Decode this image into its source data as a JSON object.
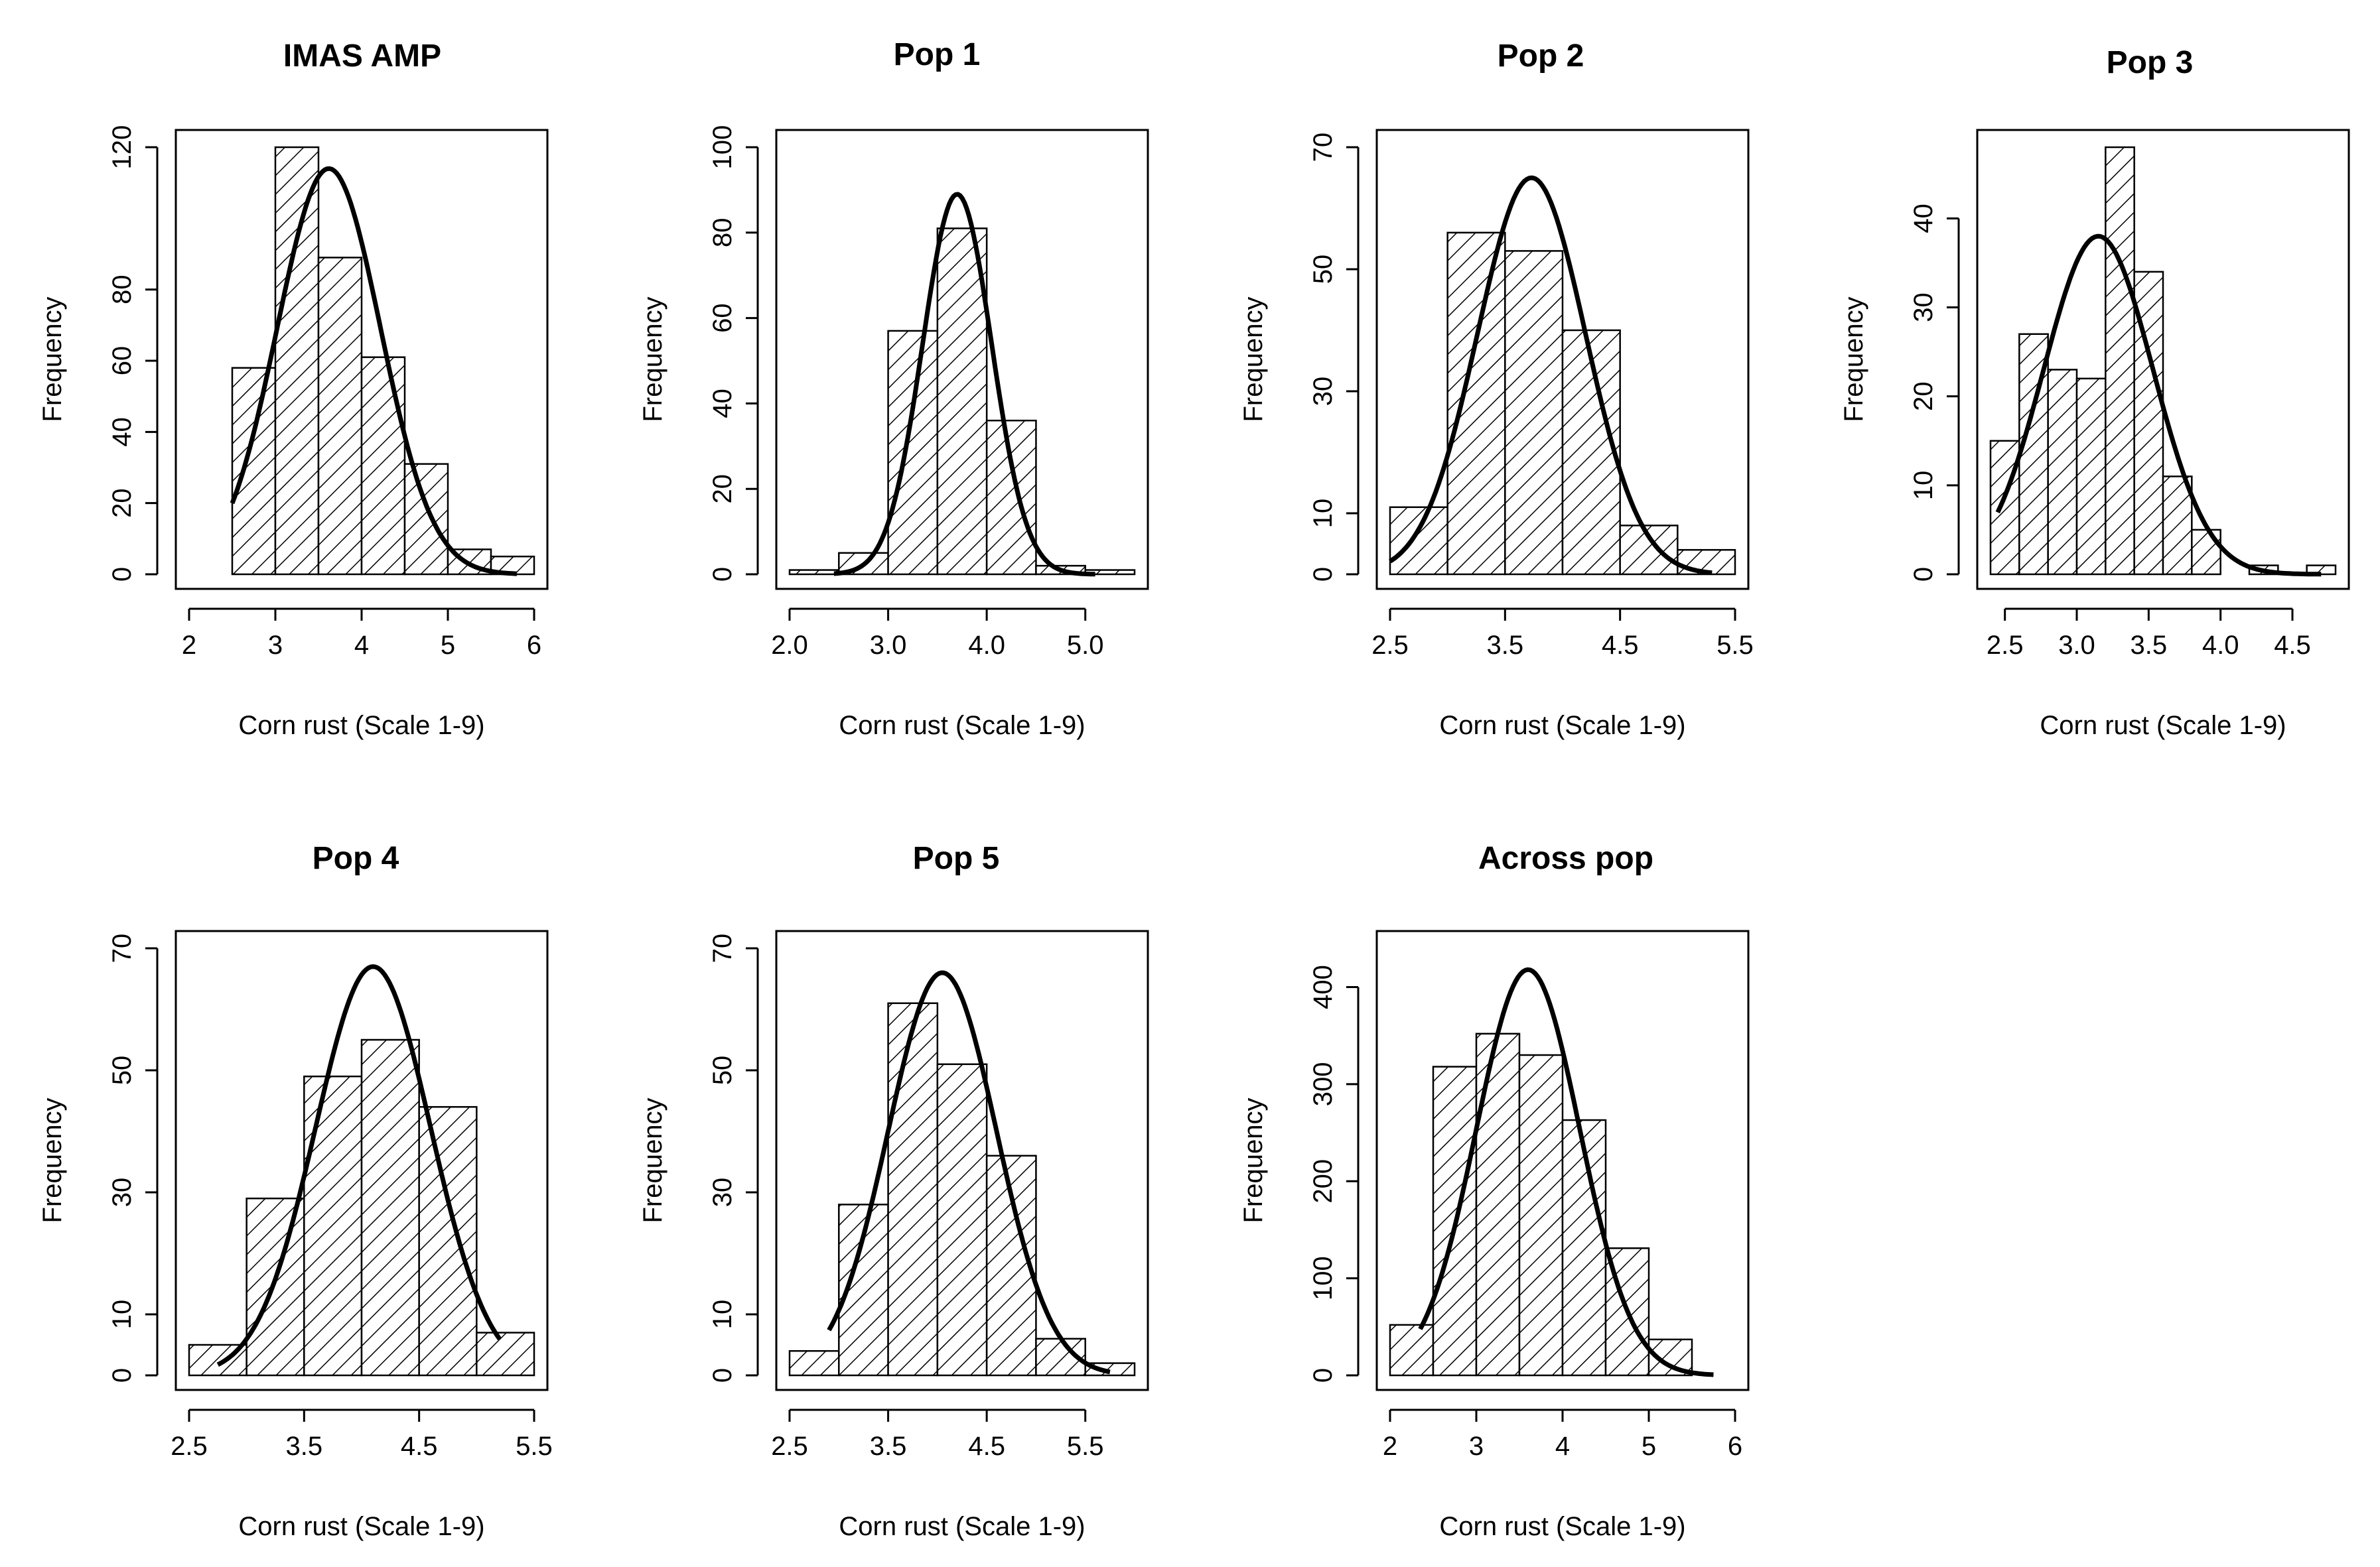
{
  "chart_data": [
    {
      "type": "bar",
      "title": "IMAS AMP",
      "xlabel": "Corn rust (Scale 1-9)",
      "ylabel": "Frequency",
      "bins": [
        [
          2.0,
          2.5
        ],
        [
          2.5,
          3.0
        ],
        [
          3.0,
          3.5
        ],
        [
          3.5,
          4.0
        ],
        [
          4.0,
          4.5
        ],
        [
          4.5,
          5.0
        ],
        [
          5.0,
          5.5
        ],
        [
          5.5,
          6.0
        ]
      ],
      "values": [
        0,
        58,
        120,
        89,
        61,
        31,
        7,
        5
      ],
      "curve": {
        "mean": 3.62,
        "peak": 114,
        "sd": 0.6,
        "from": 2.5,
        "to": 5.8
      },
      "xlim": [
        2.0,
        6.0
      ],
      "ylim": [
        0,
        120
      ],
      "xticks": [
        2,
        3,
        4,
        5,
        6
      ],
      "xtick_labels": [
        "2",
        "3",
        "4",
        "5",
        "6"
      ],
      "yticks": [
        0,
        20,
        40,
        60,
        80,
        120
      ],
      "ytick_labels": [
        "0",
        "20",
        "40",
        "60",
        "80",
        "120"
      ]
    },
    {
      "type": "bar",
      "title": "Pop 1",
      "xlabel": "Corn rust (Scale 1-9)",
      "ylabel": "Frequency",
      "bins": [
        [
          2.0,
          2.5
        ],
        [
          2.5,
          3.0
        ],
        [
          3.0,
          3.5
        ],
        [
          3.5,
          4.0
        ],
        [
          4.0,
          4.5
        ],
        [
          4.5,
          5.0
        ],
        [
          5.0,
          5.5
        ]
      ],
      "values": [
        1,
        5,
        57,
        81,
        36,
        2,
        1
      ],
      "curve": {
        "mean": 3.7,
        "peak": 89,
        "sd": 0.35,
        "from": 2.45,
        "to": 5.1
      },
      "xlim": [
        2.0,
        5.5
      ],
      "ylim": [
        0,
        100
      ],
      "xticks": [
        2.0,
        3.0,
        4.0,
        5.0
      ],
      "xtick_labels": [
        "2.0",
        "3.0",
        "4.0",
        "5.0"
      ],
      "yticks": [
        0,
        20,
        40,
        60,
        80,
        100
      ],
      "ytick_labels": [
        "0",
        "20",
        "40",
        "60",
        "80",
        "100"
      ]
    },
    {
      "type": "bar",
      "title": "Pop 2",
      "xlabel": "Corn rust (Scale 1-9)",
      "ylabel": "Frequency",
      "bins": [
        [
          2.5,
          3.0
        ],
        [
          3.0,
          3.5
        ],
        [
          3.5,
          4.0
        ],
        [
          4.0,
          4.5
        ],
        [
          4.5,
          5.0
        ],
        [
          5.0,
          5.5
        ]
      ],
      "values": [
        11,
        56,
        53,
        40,
        8,
        4
      ],
      "curve": {
        "mean": 3.73,
        "peak": 65,
        "sd": 0.47,
        "from": 2.5,
        "to": 5.3
      },
      "xlim": [
        2.5,
        5.5
      ],
      "ylim": [
        0,
        70
      ],
      "xticks": [
        2.5,
        3.5,
        4.5,
        5.5
      ],
      "xtick_labels": [
        "2.5",
        "3.5",
        "4.5",
        "5.5"
      ],
      "yticks": [
        0,
        10,
        30,
        50,
        70
      ],
      "ytick_labels": [
        "0",
        "10",
        "30",
        "50",
        "70"
      ]
    },
    {
      "type": "bar",
      "title": "Pop 3",
      "xlabel": "Corn rust (Scale 1-9)",
      "ylabel": "Frequency",
      "bins": [
        [
          2.4,
          2.6
        ],
        [
          2.6,
          2.8
        ],
        [
          2.8,
          3.0
        ],
        [
          3.0,
          3.2
        ],
        [
          3.2,
          3.4
        ],
        [
          3.4,
          3.6
        ],
        [
          3.6,
          3.8
        ],
        [
          3.8,
          4.0
        ],
        [
          4.0,
          4.2
        ],
        [
          4.2,
          4.4
        ],
        [
          4.4,
          4.6
        ],
        [
          4.6,
          4.8
        ]
      ],
      "values": [
        15,
        27,
        23,
        22,
        48,
        34,
        11,
        5,
        0,
        1,
        0,
        1
      ],
      "curve": {
        "mean": 3.15,
        "peak": 38,
        "sd": 0.38,
        "from": 2.45,
        "to": 4.7
      },
      "xlim": [
        2.4,
        4.8
      ],
      "ylim": [
        0,
        48
      ],
      "xticks": [
        2.5,
        3.0,
        3.5,
        4.0,
        4.5
      ],
      "xtick_labels": [
        "2.5",
        "3.0",
        "3.5",
        "4.0",
        "4.5"
      ],
      "yticks": [
        0,
        10,
        20,
        30,
        40
      ],
      "ytick_labels": [
        "0",
        "10",
        "20",
        "30",
        "40"
      ]
    },
    {
      "type": "bar",
      "title": "Pop 4",
      "xlabel": "Corn rust (Scale 1-9)",
      "ylabel": "Frequency",
      "bins": [
        [
          2.5,
          3.0
        ],
        [
          3.0,
          3.5
        ],
        [
          3.5,
          4.0
        ],
        [
          4.0,
          4.5
        ],
        [
          4.5,
          5.0
        ],
        [
          5.0,
          5.5
        ]
      ],
      "values": [
        5,
        29,
        49,
        55,
        44,
        7
      ],
      "curve": {
        "mean": 4.1,
        "peak": 67,
        "sd": 0.5,
        "from": 2.75,
        "to": 5.2
      },
      "xlim": [
        2.5,
        5.5
      ],
      "ylim": [
        0,
        70
      ],
      "xticks": [
        2.5,
        3.5,
        4.5,
        5.5
      ],
      "xtick_labels": [
        "2.5",
        "3.5",
        "4.5",
        "5.5"
      ],
      "yticks": [
        0,
        10,
        30,
        50,
        70
      ],
      "ytick_labels": [
        "0",
        "10",
        "30",
        "50",
        "70"
      ]
    },
    {
      "type": "bar",
      "title": "Pop 5",
      "xlabel": "Corn rust (Scale 1-9)",
      "ylabel": "Frequency",
      "bins": [
        [
          2.5,
          3.0
        ],
        [
          3.0,
          3.5
        ],
        [
          3.5,
          4.0
        ],
        [
          4.0,
          4.5
        ],
        [
          4.5,
          5.0
        ],
        [
          5.0,
          5.5
        ],
        [
          5.5,
          6.0
        ]
      ],
      "values": [
        4,
        28,
        61,
        51,
        36,
        6,
        2
      ],
      "curve": {
        "mean": 4.05,
        "peak": 66,
        "sd": 0.55,
        "from": 2.9,
        "to": 5.75
      },
      "xlim": [
        2.5,
        6.0
      ],
      "ylim": [
        0,
        70
      ],
      "xticks": [
        2.5,
        3.5,
        4.5,
        5.5
      ],
      "xtick_labels": [
        "2.5",
        "3.5",
        "4.5",
        "5.5"
      ],
      "yticks": [
        0,
        10,
        30,
        50,
        70
      ],
      "ytick_labels": [
        "0",
        "10",
        "30",
        "50",
        "70"
      ]
    },
    {
      "type": "bar",
      "title": "Across pop",
      "xlabel": "Corn rust (Scale 1-9)",
      "ylabel": "Frequency",
      "bins": [
        [
          2.0,
          2.5
        ],
        [
          2.5,
          3.0
        ],
        [
          3.0,
          3.5
        ],
        [
          3.5,
          4.0
        ],
        [
          4.0,
          4.5
        ],
        [
          4.5,
          5.0
        ],
        [
          5.0,
          5.5
        ],
        [
          5.5,
          6.0
        ]
      ],
      "values": [
        52,
        318,
        352,
        330,
        263,
        131,
        37,
        0
      ],
      "curve": {
        "mean": 3.6,
        "peak": 418,
        "sd": 0.6,
        "from": 2.35,
        "to": 5.75
      },
      "xlim": [
        2.0,
        6.0
      ],
      "ylim": [
        0,
        440
      ],
      "xticks": [
        2,
        3,
        4,
        5,
        6
      ],
      "xtick_labels": [
        "2",
        "3",
        "4",
        "5",
        "6"
      ],
      "yticks": [
        0,
        100,
        200,
        300,
        400
      ],
      "ytick_labels": [
        "0",
        "100",
        "200",
        "300",
        "400"
      ]
    }
  ]
}
